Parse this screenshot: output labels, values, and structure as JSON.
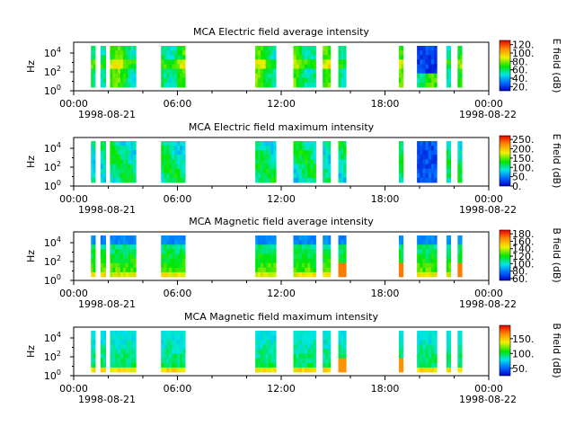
{
  "chart_data": [
    {
      "type": "heatmap",
      "title": "MCA  Electric field average intensity",
      "ylabel": "Hz",
      "y_tick_labels": [
        {
          "b": "10",
          "e": "0"
        },
        {
          "b": "10",
          "e": "2"
        },
        {
          "b": "10",
          "e": "4"
        }
      ],
      "colorbar": {
        "label": "E field (dB)",
        "ticks": [
          "20.",
          "40.",
          "60.",
          "80.",
          "100.",
          "120."
        ],
        "range": [
          10,
          130
        ]
      },
      "x_tick_labels": [
        "00:00",
        "06:00",
        "12:00",
        "18:00",
        "00:00"
      ],
      "x_date_labels": [
        "1998-08-21",
        "1998-08-22"
      ],
      "style": "avg_e",
      "data_segments_hours": [
        [
          1.0,
          1.25
        ],
        [
          1.55,
          1.85
        ],
        [
          2.1,
          3.6
        ],
        [
          5.05,
          6.45
        ],
        [
          10.5,
          11.7
        ],
        [
          12.7,
          14.0
        ],
        [
          14.4,
          14.85
        ],
        [
          15.3,
          15.75
        ],
        [
          18.8,
          19.05
        ],
        [
          19.85,
          21.0
        ],
        [
          21.55,
          21.8
        ],
        [
          22.2,
          22.45
        ]
      ]
    },
    {
      "type": "heatmap",
      "title": "MCA  Electric field maximum intensity",
      "ylabel": "Hz",
      "y_tick_labels": [
        {
          "b": "10",
          "e": "0"
        },
        {
          "b": "10",
          "e": "2"
        },
        {
          "b": "10",
          "e": "4"
        }
      ],
      "colorbar": {
        "label": "E field (dB)",
        "ticks": [
          "0.",
          "50.",
          "100.",
          "150.",
          "200.",
          "250."
        ],
        "range": [
          0,
          270
        ]
      },
      "x_tick_labels": [
        "00:00",
        "06:00",
        "12:00",
        "18:00",
        "00:00"
      ],
      "x_date_labels": [
        "1998-08-21",
        "1998-08-22"
      ],
      "style": "max_e",
      "data_segments_hours": [
        [
          1.0,
          1.25
        ],
        [
          1.55,
          1.85
        ],
        [
          2.1,
          3.6
        ],
        [
          5.05,
          6.45
        ],
        [
          10.5,
          11.7
        ],
        [
          12.7,
          14.0
        ],
        [
          14.4,
          14.85
        ],
        [
          15.3,
          15.75
        ],
        [
          18.8,
          19.05
        ],
        [
          19.85,
          21.0
        ],
        [
          21.55,
          21.8
        ],
        [
          22.2,
          22.45
        ]
      ]
    },
    {
      "type": "heatmap",
      "title": "MCA  Magnetic field average intensity",
      "ylabel": "Hz",
      "y_tick_labels": [
        {
          "b": "10",
          "e": "0"
        },
        {
          "b": "10",
          "e": "2"
        },
        {
          "b": "10",
          "e": "4"
        }
      ],
      "colorbar": {
        "label": "B field (dB)",
        "ticks": [
          "60.",
          "80.",
          "100.",
          "120.",
          "140.",
          "160.",
          "180."
        ],
        "range": [
          55,
          190
        ]
      },
      "x_tick_labels": [
        "00:00",
        "06:00",
        "12:00",
        "18:00",
        "00:00"
      ],
      "x_date_labels": [
        "1998-08-21",
        "1998-08-22"
      ],
      "style": "avg_b",
      "data_segments_hours": [
        [
          1.0,
          1.25
        ],
        [
          1.55,
          1.85
        ],
        [
          2.1,
          3.6
        ],
        [
          5.05,
          6.45
        ],
        [
          10.5,
          11.7
        ],
        [
          12.7,
          14.0
        ],
        [
          14.4,
          14.85
        ],
        [
          15.3,
          15.75
        ],
        [
          18.8,
          19.05
        ],
        [
          19.85,
          21.0
        ],
        [
          21.55,
          21.8
        ],
        [
          22.2,
          22.45
        ]
      ]
    },
    {
      "type": "heatmap",
      "title": "MCA  Magnetic field maximum intensity",
      "ylabel": "Hz",
      "y_tick_labels": [
        {
          "b": "10",
          "e": "0"
        },
        {
          "b": "10",
          "e": "2"
        },
        {
          "b": "10",
          "e": "4"
        }
      ],
      "colorbar": {
        "label": "B field (dB)",
        "ticks": [
          "50.",
          "100.",
          "150."
        ],
        "range": [
          25,
          195
        ]
      },
      "x_tick_labels": [
        "00:00",
        "06:00",
        "12:00",
        "18:00",
        "00:00"
      ],
      "x_date_labels": [
        "1998-08-21",
        "1998-08-22"
      ],
      "style": "max_b",
      "data_segments_hours": [
        [
          1.0,
          1.25
        ],
        [
          1.55,
          1.85
        ],
        [
          2.1,
          3.6
        ],
        [
          5.05,
          6.45
        ],
        [
          10.5,
          11.7
        ],
        [
          12.7,
          14.0
        ],
        [
          14.4,
          14.85
        ],
        [
          15.3,
          15.75
        ],
        [
          18.8,
          19.05
        ],
        [
          19.85,
          21.0
        ],
        [
          21.55,
          21.8
        ],
        [
          22.2,
          22.45
        ]
      ]
    }
  ]
}
